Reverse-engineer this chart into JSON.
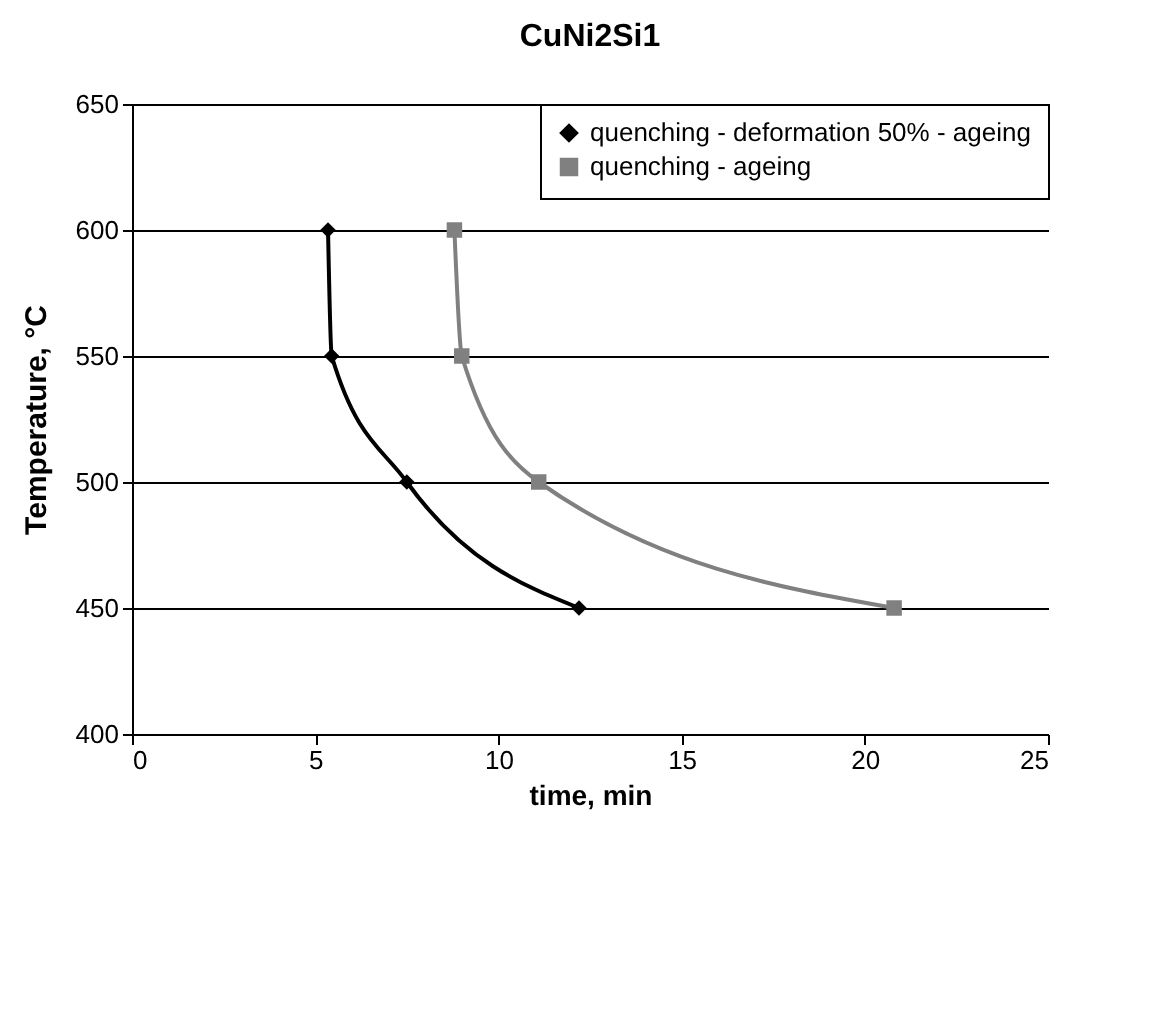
{
  "chart_data": {
    "type": "line",
    "title": "CuNi2Si1",
    "xlabel": "time, min",
    "ylabel": "Temperature, °C",
    "xlim": [
      0,
      25
    ],
    "xticks": [
      0,
      5,
      10,
      15,
      20,
      25
    ],
    "ylim": [
      400,
      650
    ],
    "yticks": [
      400,
      450,
      500,
      550,
      600,
      650
    ],
    "grid": "y",
    "legend": "top right",
    "series": [
      {
        "name": "quenching - deformation 50% - ageing",
        "color": "#000000",
        "marker": "diamond",
        "x": [
          5.35,
          5.45,
          7.5,
          12.2
        ],
        "values": [
          600,
          550,
          500,
          450
        ]
      },
      {
        "name": "quenching - ageing",
        "color": "#808080",
        "marker": "square",
        "x": [
          8.8,
          9.0,
          11.1,
          20.8
        ],
        "values": [
          600,
          550,
          500,
          450
        ]
      }
    ]
  }
}
